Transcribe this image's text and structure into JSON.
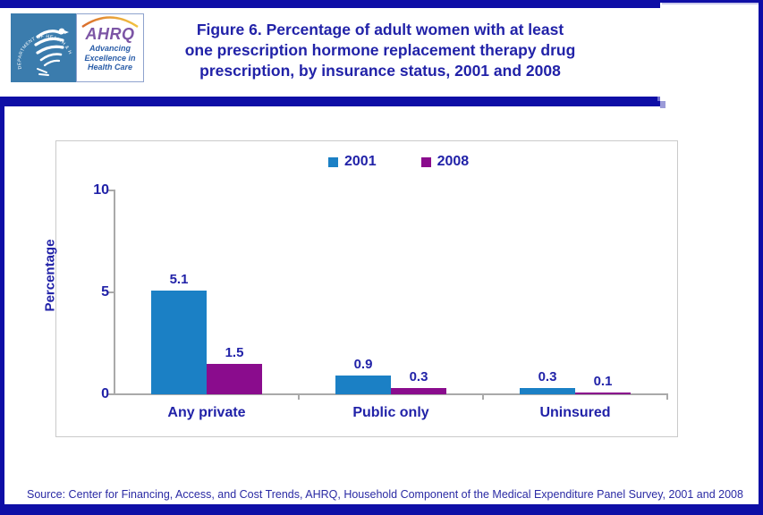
{
  "page": {
    "title_lines": [
      "Figure 6. Percentage of adult women with at least",
      "one prescription hormone replacement therapy drug",
      "prescription, by insurance status, 2001 and 2008"
    ],
    "source": "Source: Center for Financing, Access, and Cost Trends, AHRQ, Household Component of the Medical Expenditure Panel Survey,  2001 and 2008"
  },
  "logos": {
    "hhs_arc_text": "DEPARTMENT OF HEALTH & HUMAN SERVICES · USA",
    "ahrq_acronym": "AHRQ",
    "ahrq_tagline_lines": [
      "Advancing",
      "Excellence in",
      "Health Care"
    ]
  },
  "chart_data": {
    "type": "bar",
    "title": "Percentage of adult women with at least one prescription hormone replacement therapy drug prescription, by insurance status, 2001 and 2008",
    "categories": [
      "Any private",
      "Public only",
      "Uninsured"
    ],
    "series": [
      {
        "name": "2001",
        "values": [
          5.1,
          0.9,
          0.3
        ],
        "color": "#1b80c5"
      },
      {
        "name": "2008",
        "values": [
          1.5,
          0.3,
          0.1
        ],
        "color": "#8a0c8d"
      }
    ],
    "xlabel": "",
    "ylabel": "Percentage",
    "ylim": [
      0,
      10
    ],
    "yticks": [
      0,
      5,
      10
    ],
    "grid": false,
    "legend_position": "top-center",
    "value_labels_shown": true
  },
  "colors": {
    "frame_navy": "#0e0ea6",
    "text_navy": "#2122a8",
    "axis_gray": "#a9a9a9",
    "series_2001_blue": "#1b80c5",
    "series_2008_purple": "#8a0c8d"
  }
}
